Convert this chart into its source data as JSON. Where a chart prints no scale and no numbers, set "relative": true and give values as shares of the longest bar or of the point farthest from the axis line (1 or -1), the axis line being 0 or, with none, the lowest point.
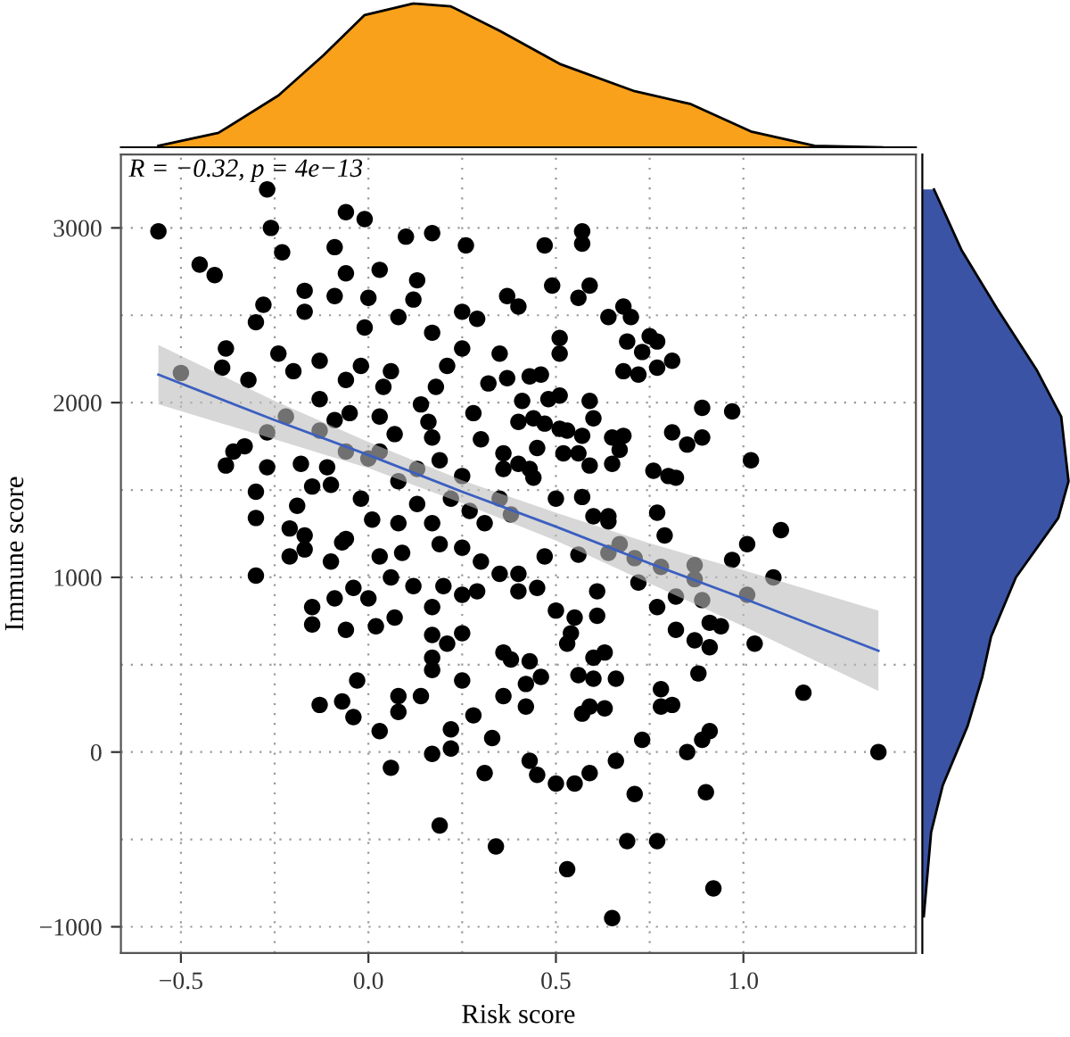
{
  "chart_data": [
    {
      "type": "scatter",
      "xlabel": "Risk score",
      "ylabel": "Immune score",
      "annotations": [
        "R = −0.32, p = 4e−13"
      ],
      "xlim": [
        -0.66,
        1.46
      ],
      "ylim": [
        -1150,
        3420
      ],
      "xticks": [
        {
          "value": -0.5,
          "label": "−0.5"
        },
        {
          "value": 0,
          "label": "0.0"
        },
        {
          "value": 0.5,
          "label": "0.5"
        },
        {
          "value": 1,
          "label": "1.0"
        }
      ],
      "yticks": [
        {
          "value": -1000,
          "label": "−1000"
        },
        0,
        1000,
        2000,
        3000
      ],
      "grid": true,
      "series": [
        {
          "type": "scatter",
          "color": "#000000",
          "marker": "circle",
          "x": [
            -0.56,
            -0.27,
            -0.26,
            -0.45,
            -0.41,
            -0.06,
            -0.01,
            0.1,
            0.17,
            0.26,
            -0.23,
            -0.09,
            -0.06,
            0.03,
            0.13,
            -0.17,
            -0.09,
            0.0,
            0.12,
            -0.28,
            -0.3,
            -0.17,
            0.08,
            -0.01,
            0.17,
            0.25,
            0.29,
            -0.38,
            -0.39,
            -0.5,
            -0.32,
            -0.24,
            -0.13,
            -0.2,
            -0.02,
            -0.06,
            0.06,
            0.18,
            0.32,
            0.35,
            -0.13,
            -0.05,
            0.04,
            0.14,
            0.21,
            0.25,
            -0.22,
            -0.09,
            0.03,
            0.16,
            0.28,
            -0.27,
            -0.13,
            0.07,
            0.17,
            0.3,
            -0.36,
            -0.38,
            -0.33,
            -0.27,
            -0.18,
            -0.11,
            -0.06,
            0.0,
            0.03,
            0.13,
            0.19,
            0.25,
            0.36,
            -0.15,
            -0.1,
            -0.3,
            -0.3,
            -0.19,
            -0.02,
            0.08,
            0.13,
            0.22,
            0.27,
            0.35,
            -0.21,
            -0.17,
            -0.06,
            0.01,
            0.08,
            0.17,
            0.25,
            0.31,
            0.57,
            0.57,
            0.47,
            0.49,
            0.59,
            0.56,
            0.37,
            0.4,
            0.68,
            0.64,
            0.7,
            0.75,
            0.77,
            0.69,
            0.73,
            0.51,
            0.51,
            0.68,
            0.72,
            0.77,
            0.81,
            0.43,
            0.46,
            0.37,
            0.41,
            0.48,
            0.51,
            0.59,
            0.6,
            0.44,
            0.47,
            0.4,
            0.89,
            0.97,
            0.51,
            0.53,
            0.57,
            0.65,
            0.68,
            0.67,
            0.81,
            0.85,
            0.89,
            1.02,
            0.52,
            0.56,
            0.45,
            0.36,
            0.4,
            0.43,
            0.44,
            0.59,
            0.65,
            0.76,
            0.8,
            0.82,
            0.5,
            0.57,
            0.77,
            0.6,
            0.64,
            0.64,
            0.79,
            1.01,
            1.1,
            0.38,
            -0.3,
            -0.21,
            -0.17,
            -0.1,
            -0.07,
            0.03,
            0.09,
            0.19,
            0.3,
            0.35,
            -0.15,
            -0.15,
            -0.09,
            -0.04,
            0.0,
            0.06,
            0.12,
            -0.06,
            0.02,
            0.07,
            0.17,
            0.2,
            0.25,
            0.29,
            0.17,
            0.21,
            0.17,
            0.17,
            0.25,
            0.36,
            -0.03,
            0.08,
            0.14,
            0.08,
            -0.13,
            -0.07,
            -0.04,
            0.03,
            0.25,
            0.28,
            0.36,
            0.22,
            0.22,
            0.17,
            0.33,
            0.06,
            0.31,
            0.19,
            0.34,
            0.97,
            1.08,
            0.67,
            0.71,
            0.78,
            0.87,
            0.87,
            0.82,
            0.89,
            0.91,
            0.94,
            1.01,
            1.03,
            0.91,
            0.87,
            0.82,
            0.77,
            0.72,
            0.64,
            0.56,
            0.61,
            0.61,
            0.55,
            0.5,
            0.54,
            0.53,
            0.45,
            0.4,
            0.47,
            0.4,
            0.6,
            0.63,
            0.66,
            0.6,
            0.56,
            0.46,
            0.42,
            0.43,
            0.38,
            0.42,
            0.57,
            0.59,
            0.63,
            0.78,
            0.78,
            0.81,
            0.88,
            1.16,
            0.91,
            0.89,
            0.85,
            0.73,
            0.43,
            0.45,
            0.5,
            0.55,
            0.59,
            0.66,
            0.71,
            0.9,
            1.36,
            0.69,
            0.77,
            0.53,
            0.92,
            0.65
          ],
          "values": [
            2980,
            3220,
            3000,
            2790,
            2730,
            3090,
            3050,
            2950,
            2970,
            2900,
            2860,
            2890,
            2740,
            2760,
            2700,
            2640,
            2610,
            2600,
            2590,
            2560,
            2460,
            2520,
            2490,
            2430,
            2400,
            2520,
            2480,
            2310,
            2200,
            2170,
            2130,
            2280,
            2240,
            2180,
            2210,
            2130,
            2180,
            2090,
            2110,
            2280,
            2020,
            1940,
            2090,
            1990,
            2210,
            2310,
            1920,
            1900,
            1920,
            1890,
            1940,
            1830,
            1840,
            1820,
            1800,
            1790,
            1720,
            1640,
            1750,
            1630,
            1650,
            1630,
            1720,
            1680,
            1720,
            1620,
            1670,
            1580,
            1620,
            1520,
            1530,
            1490,
            1340,
            1410,
            1450,
            1550,
            1420,
            1450,
            1380,
            1450,
            1280,
            1240,
            1220,
            1330,
            1310,
            1310,
            1170,
            1310,
            2980,
            2910,
            2900,
            2670,
            2670,
            2600,
            2610,
            2550,
            2550,
            2490,
            2490,
            2380,
            2350,
            2350,
            2290,
            2370,
            2280,
            2180,
            2160,
            2200,
            2240,
            2150,
            2160,
            2140,
            2010,
            2020,
            2040,
            2010,
            1910,
            1910,
            1880,
            1890,
            1970,
            1950,
            1850,
            1840,
            1810,
            1800,
            1810,
            1730,
            1830,
            1760,
            1800,
            1670,
            1710,
            1710,
            1740,
            1710,
            1650,
            1620,
            1570,
            1640,
            1650,
            1610,
            1580,
            1570,
            1450,
            1460,
            1370,
            1350,
            1350,
            1320,
            1240,
            1190,
            1270,
            1360,
            1010,
            1120,
            1160,
            1090,
            1200,
            1120,
            1140,
            1190,
            1090,
            1020,
            830,
            730,
            880,
            940,
            880,
            1000,
            950,
            700,
            720,
            770,
            830,
            950,
            900,
            920,
            670,
            620,
            540,
            470,
            680,
            570,
            410,
            320,
            320,
            230,
            270,
            290,
            200,
            120,
            410,
            210,
            320,
            130,
            20,
            -10,
            80,
            -90,
            -120,
            -420,
            -540,
            1100,
            1000,
            1190,
            1110,
            1060,
            1070,
            990,
            890,
            870,
            740,
            720,
            900,
            620,
            600,
            640,
            700,
            830,
            970,
            1140,
            1130,
            920,
            780,
            770,
            810,
            680,
            620,
            940,
            920,
            1120,
            1020,
            540,
            570,
            420,
            420,
            440,
            430,
            390,
            520,
            530,
            260,
            220,
            260,
            250,
            360,
            260,
            270,
            450,
            340,
            120,
            70,
            0,
            70,
            -50,
            -130,
            -180,
            -180,
            -120,
            -50,
            -240,
            -230,
            0,
            -510,
            -510,
            -670,
            -780,
            -950
          ]
        },
        {
          "type": "line",
          "color": "#3b5fc0",
          "line_style": "solid",
          "marker": "none",
          "x": [
            -0.56,
            -0.25,
            0.0,
            0.25,
            0.5,
            0.75,
            1.0,
            1.36
          ],
          "values": [
            2160,
            1900,
            1700,
            1490,
            1290,
            1080,
            880,
            580
          ],
          "lower": [
            1990,
            1790,
            1625,
            1425,
            1210,
            965,
            720,
            350
          ],
          "upper": [
            2330,
            2010,
            1775,
            1555,
            1370,
            1195,
            1040,
            810
          ]
        }
      ]
    },
    {
      "type": "area",
      "relative": true,
      "color": "#f9a11b",
      "xlim": [
        -0.66,
        1.46
      ],
      "tick_labels": false,
      "x": [
        -0.56,
        -0.4,
        -0.24,
        -0.12,
        -0.01,
        0.12,
        0.22,
        0.35,
        0.51,
        0.71,
        0.86,
        1.02,
        1.19,
        1.37
      ],
      "values": [
        0.01,
        0.1,
        0.36,
        0.64,
        0.92,
        1.0,
        0.98,
        0.81,
        0.58,
        0.39,
        0.3,
        0.11,
        0.01,
        0.0
      ]
    },
    {
      "type": "area",
      "relative": true,
      "orientation": "horizontal",
      "color": "#3a53a4",
      "ylim": [
        -1150,
        3420
      ],
      "tick_labels": false,
      "x": [
        3220,
        2870,
        2540,
        2190,
        1920,
        1550,
        1340,
        1000,
        660,
        430,
        150,
        -190,
        -460,
        -940
      ],
      "values": [
        0.08,
        0.27,
        0.51,
        0.78,
        0.95,
        1.0,
        0.93,
        0.64,
        0.47,
        0.41,
        0.31,
        0.14,
        0.06,
        0.01
      ]
    }
  ]
}
